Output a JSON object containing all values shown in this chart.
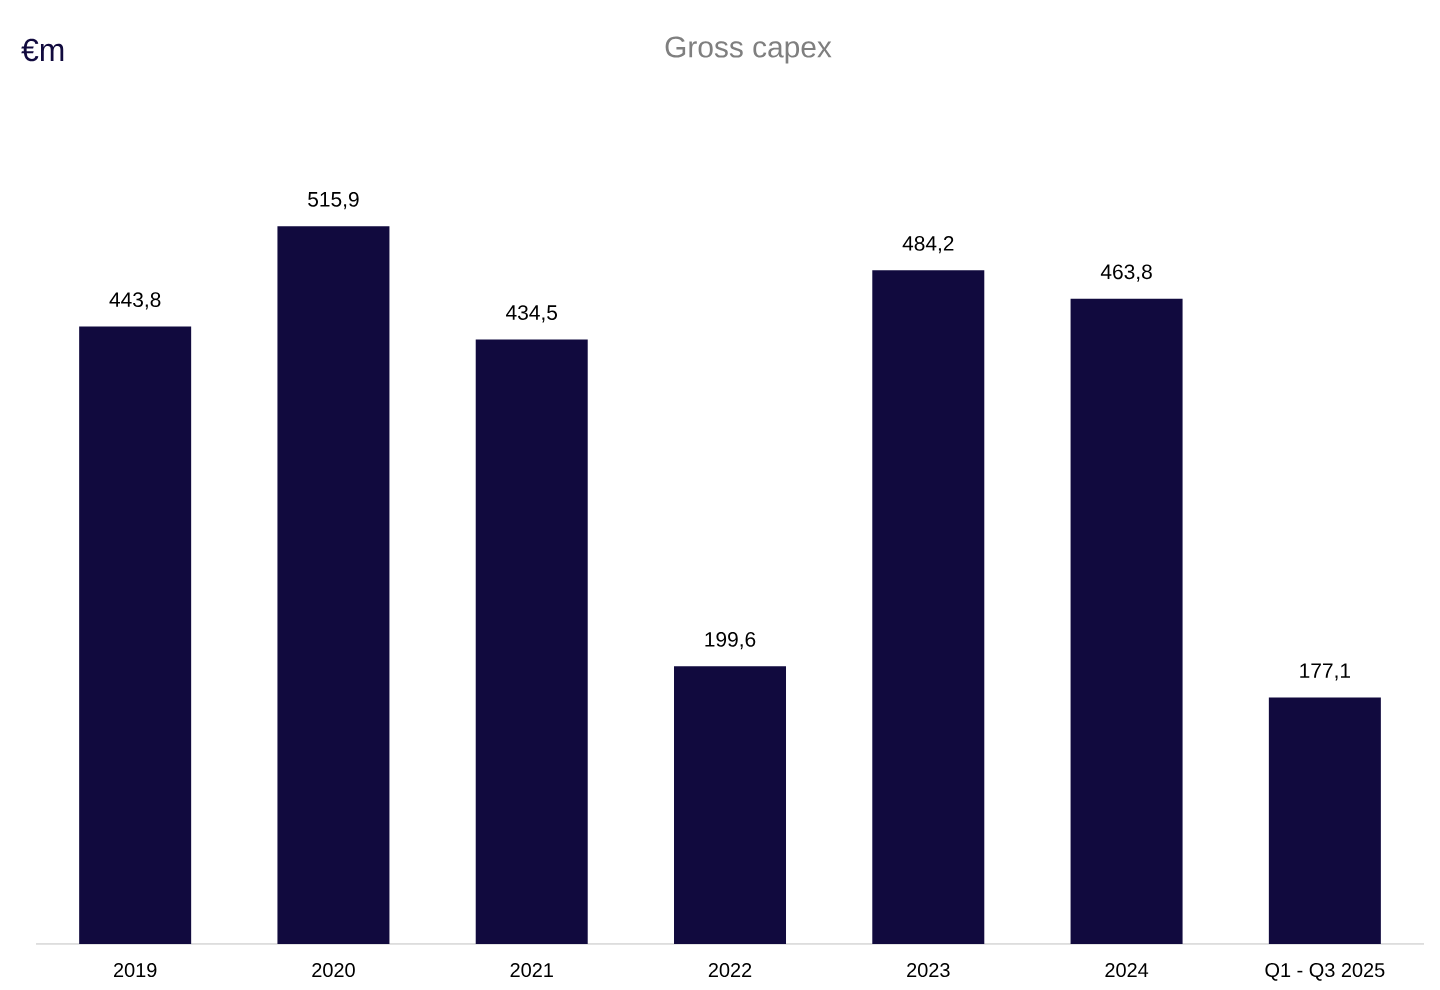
{
  "chart_data": {
    "type": "bar",
    "title": "Gross capex",
    "annotations": [
      "€m"
    ],
    "categories": [
      "2019",
      "2020",
      "2021",
      "2022",
      "2023",
      "2024",
      "Q1 - Q3 2025"
    ],
    "values": [
      443.8,
      515.9,
      434.5,
      199.6,
      484.2,
      463.8,
      177.1
    ],
    "value_labels": [
      "443,8",
      "515,9",
      "434,5",
      "199,6",
      "484,2",
      "463,8",
      "177,1"
    ],
    "color": "#110a3e"
  }
}
